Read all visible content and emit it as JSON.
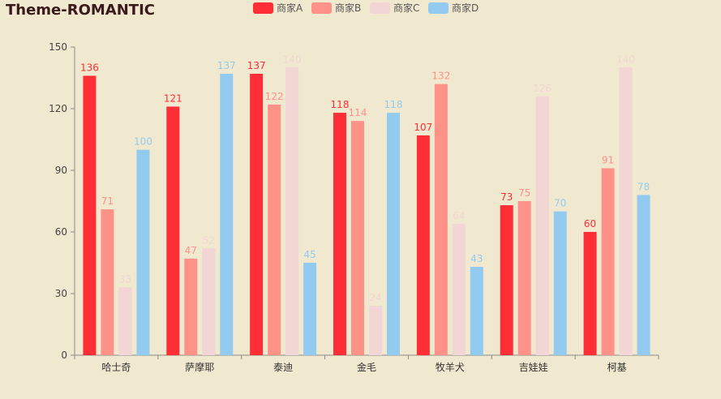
{
  "chart_data": {
    "type": "bar",
    "title": "Theme-ROMANTIC",
    "categories": [
      "哈士奇",
      "萨摩耶",
      "泰迪",
      "金毛",
      "牧羊犬",
      "吉娃娃",
      "柯基"
    ],
    "series": [
      {
        "name": "商家A",
        "color": "#fd2e36",
        "values": [
          136,
          121,
          137,
          118,
          107,
          73,
          60
        ]
      },
      {
        "name": "商家B",
        "color": "#ff9288",
        "values": [
          71,
          47,
          122,
          114,
          132,
          75,
          91
        ]
      },
      {
        "name": "商家C",
        "color": "#f2d5d5",
        "values": [
          33,
          52,
          140,
          24,
          64,
          126,
          140
        ]
      },
      {
        "name": "商家D",
        "color": "#92cbef",
        "values": [
          100,
          137,
          45,
          118,
          43,
          70,
          78
        ]
      }
    ],
    "yticks": [
      0,
      30,
      60,
      90,
      120,
      150
    ],
    "ylim": [
      0,
      150
    ],
    "legend_position": "top-center",
    "show_data_labels": true
  }
}
